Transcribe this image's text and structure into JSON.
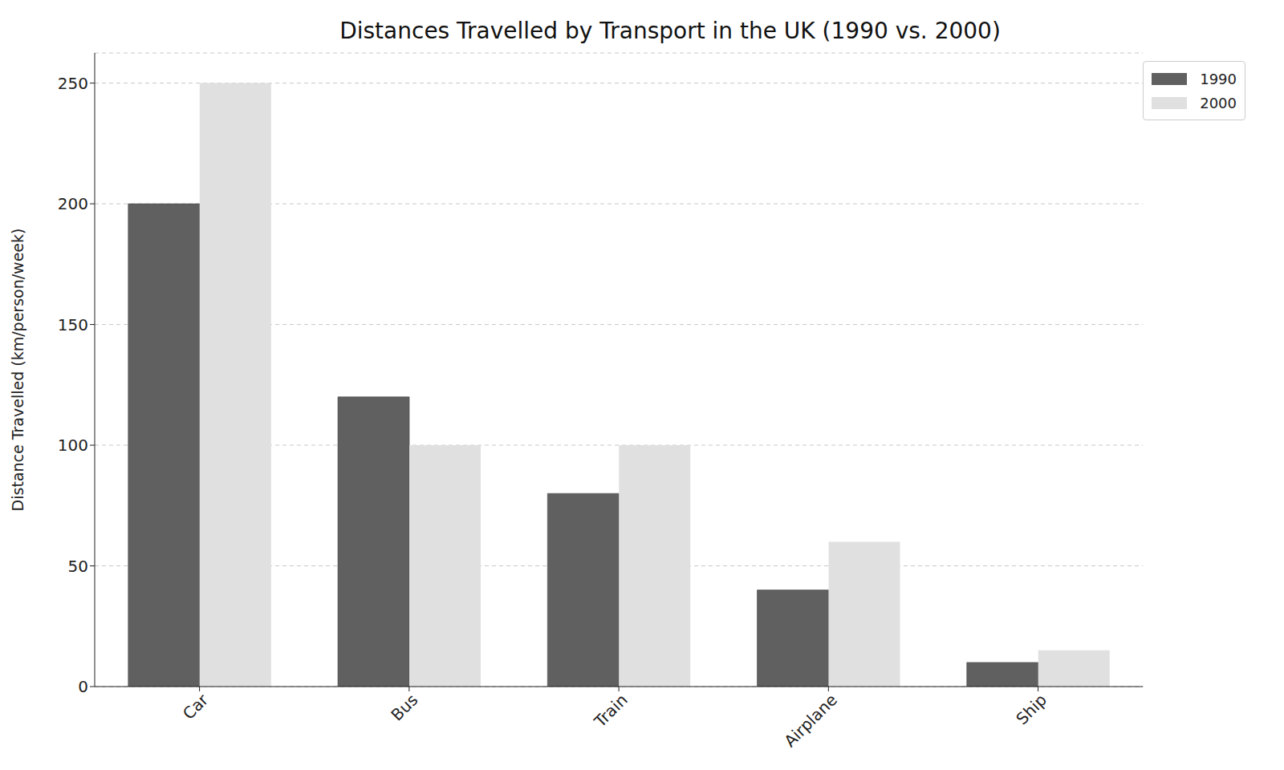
{
  "chart_data": {
    "type": "bar",
    "title": "Distances Travelled by Transport in the UK (1990 vs. 2000)",
    "y_label": "Distance Travelled (km/person/week)",
    "categories": [
      "Car",
      "Bus",
      "Train",
      "Airplane",
      "Ship"
    ],
    "series": [
      {
        "name": "1990",
        "color": "#606060",
        "values": [
          200,
          120,
          80,
          40,
          10
        ]
      },
      {
        "name": "2000",
        "color": "#e0e0e0",
        "values": [
          250,
          100,
          100,
          60,
          15
        ]
      }
    ],
    "ylim": [
      0,
      262.5
    ],
    "yticks": [
      0,
      50,
      100,
      150,
      200,
      250
    ],
    "grid": true,
    "legend": "upper right"
  }
}
